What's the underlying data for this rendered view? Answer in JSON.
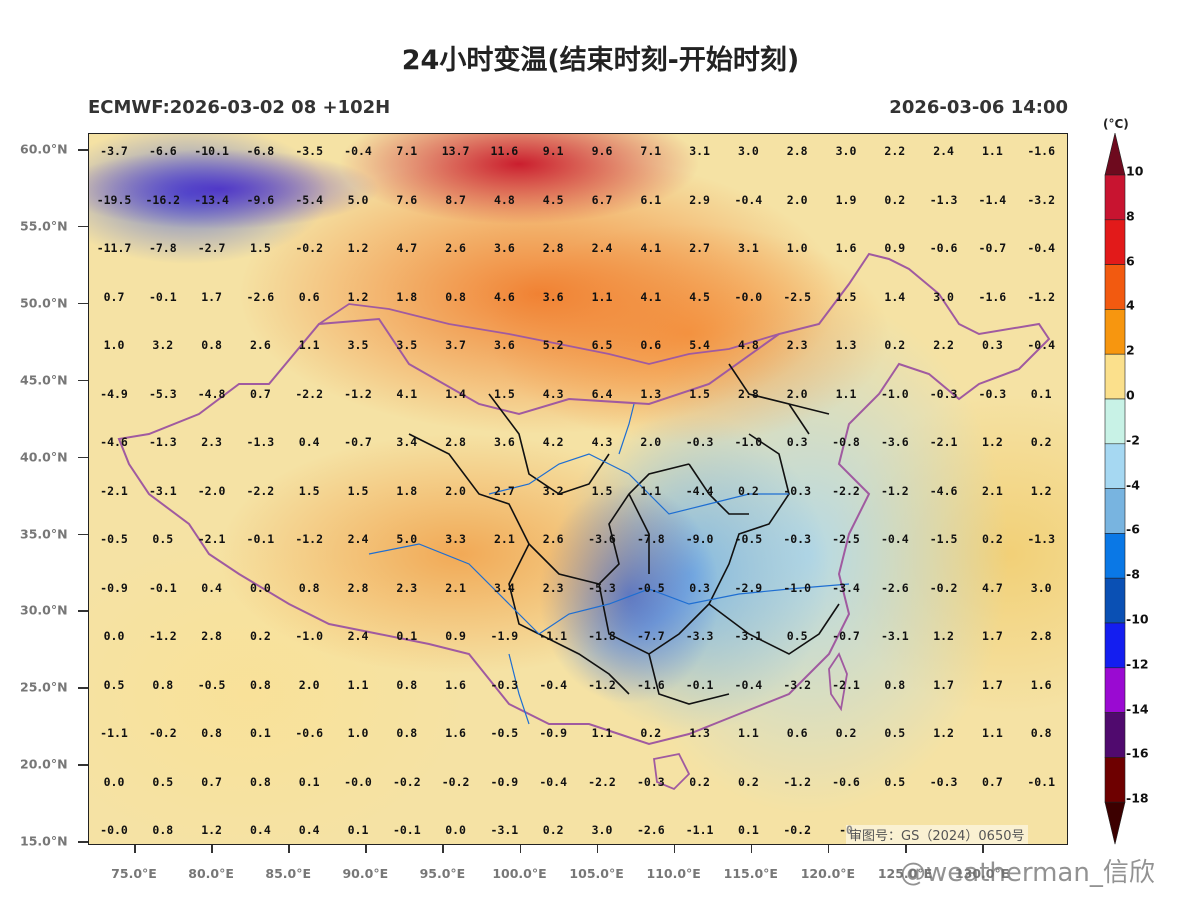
{
  "title": "24小时变温(结束时刻-开始时刻)",
  "subtitle_left": "ECMWF:2026-03-02 08 +102H",
  "subtitle_right": "2026-03-06 14:00",
  "colorbar": {
    "unit": "(°C)",
    "ticks": [
      "10",
      "8",
      "6",
      "4",
      "2",
      "0",
      "-2",
      "-4",
      "-6",
      "-8",
      "-10",
      "-12",
      "-14",
      "-16",
      "-18"
    ],
    "colors": [
      "#6e0a1e",
      "#c81430",
      "#e21a1a",
      "#f25a10",
      "#f7960f",
      "#fbe08c",
      "#c8f2e6",
      "#a6d8f2",
      "#78b4e0",
      "#0a78e6",
      "#0a50b4",
      "#141ef0",
      "#9a0ad2",
      "#500a6e",
      "#6e0000",
      "#3c0000"
    ]
  },
  "lat_labels": [
    "60.0°N",
    "55.0°N",
    "50.0°N",
    "45.0°N",
    "40.0°N",
    "35.0°N",
    "30.0°N",
    "25.0°N",
    "20.0°N",
    "15.0°N"
  ],
  "lon_labels": [
    "75.0°E",
    "80.0°E",
    "85.0°E",
    "90.0°E",
    "95.0°E",
    "100.0°E",
    "105.0°E",
    "110.0°E",
    "115.0°E",
    "120.0°E",
    "125.0°E",
    "130.0°E"
  ],
  "grid_values": [
    [
      "-3.7",
      "-6.6",
      "-10.1",
      "-6.8",
      "-3.5",
      "-0.4",
      "7.1",
      "13.7",
      "11.6",
      "9.1",
      "9.6",
      "7.1",
      "3.1",
      "3.0",
      "2.8",
      "3.0",
      "2.2",
      "2.4",
      "1.1",
      "-1.6"
    ],
    [
      "-19.5",
      "-16.2",
      "-13.4",
      "-9.6",
      "-5.4",
      "5.0",
      "7.6",
      "8.7",
      "4.8",
      "4.5",
      "6.7",
      "6.1",
      "2.9",
      "-0.4",
      "2.0",
      "1.9",
      "0.2",
      "-1.3",
      "-1.4",
      "-3.2"
    ],
    [
      "-11.7",
      "-7.8",
      "-2.7",
      "1.5",
      "-0.2",
      "1.2",
      "4.7",
      "2.6",
      "3.6",
      "2.8",
      "2.4",
      "4.1",
      "2.7",
      "3.1",
      "1.0",
      "1.6",
      "0.9",
      "-0.6",
      "-0.7",
      "-0.4"
    ],
    [
      "0.7",
      "-0.1",
      "1.7",
      "-2.6",
      "0.6",
      "1.2",
      "1.8",
      "0.8",
      "4.6",
      "3.6",
      "1.1",
      "4.1",
      "4.5",
      "-0.0",
      "-2.5",
      "1.5",
      "1.4",
      "3.0",
      "-1.6",
      "-1.2"
    ],
    [
      "1.0",
      "3.2",
      "0.8",
      "2.6",
      "1.1",
      "3.5",
      "3.5",
      "3.7",
      "3.6",
      "5.2",
      "6.5",
      "0.6",
      "5.4",
      "4.8",
      "2.3",
      "1.3",
      "0.2",
      "2.2",
      "0.3",
      "-0.4"
    ],
    [
      "-4.9",
      "-5.3",
      "-4.8",
      "0.7",
      "-2.2",
      "-1.2",
      "4.1",
      "1.4",
      "1.5",
      "4.3",
      "6.4",
      "1.3",
      "1.5",
      "2.8",
      "2.0",
      "1.1",
      "-1.0",
      "-0.3",
      "-0.3",
      "0.1"
    ],
    [
      "-4.6",
      "-1.3",
      "2.3",
      "-1.3",
      "0.4",
      "-0.7",
      "3.4",
      "2.8",
      "3.6",
      "4.2",
      "4.3",
      "2.0",
      "-0.3",
      "-1.0",
      "0.3",
      "-0.8",
      "-3.6",
      "-2.1",
      "1.2",
      "0.2"
    ],
    [
      "-2.1",
      "-3.1",
      "-2.0",
      "-2.2",
      "1.5",
      "1.5",
      "1.8",
      "2.0",
      "2.7",
      "3.2",
      "1.5",
      "1.1",
      "-4.4",
      "0.2",
      "-0.3",
      "-2.2",
      "-1.2",
      "-4.6",
      "2.1",
      "1.2"
    ],
    [
      "-0.5",
      "0.5",
      "-2.1",
      "-0.1",
      "-1.2",
      "2.4",
      "5.0",
      "3.3",
      "2.1",
      "2.6",
      "-3.6",
      "-7.8",
      "-9.0",
      "-0.5",
      "-0.3",
      "-2.5",
      "-0.4",
      "-1.5",
      "0.2",
      "-1.3"
    ],
    [
      "-0.9",
      "-0.1",
      "0.4",
      "0.0",
      "0.8",
      "2.8",
      "2.3",
      "2.1",
      "3.4",
      "2.3",
      "-5.3",
      "-0.5",
      "0.3",
      "-2.9",
      "-1.0",
      "-3.4",
      "-2.6",
      "-0.2",
      "4.7",
      "3.0"
    ],
    [
      "0.0",
      "-1.2",
      "2.8",
      "0.2",
      "-1.0",
      "2.4",
      "0.1",
      "0.9",
      "-1.9",
      "-1.1",
      "-1.8",
      "-7.7",
      "-3.3",
      "-3.1",
      "0.5",
      "-0.7",
      "-3.1",
      "1.2",
      "1.7",
      "2.8"
    ],
    [
      "0.5",
      "0.8",
      "-0.5",
      "0.8",
      "2.0",
      "1.1",
      "0.8",
      "1.6",
      "-0.3",
      "-0.4",
      "-1.2",
      "-1.6",
      "-0.1",
      "-0.4",
      "-3.2",
      "-2.1",
      "0.8",
      "1.7",
      "1.7",
      "1.6"
    ],
    [
      "-1.1",
      "-0.2",
      "0.8",
      "0.1",
      "-0.6",
      "1.0",
      "0.8",
      "1.6",
      "-0.5",
      "-0.9",
      "1.1",
      "0.2",
      "1.3",
      "1.1",
      "0.6",
      "0.2",
      "0.5",
      "1.2",
      "1.1",
      "0.8"
    ],
    [
      "0.0",
      "0.5",
      "0.7",
      "0.8",
      "0.1",
      "-0.0",
      "-0.2",
      "-0.2",
      "-0.9",
      "-0.4",
      "-2.2",
      "-0.3",
      "0.2",
      "0.2",
      "-1.2",
      "-0.6",
      "0.5",
      "-0.3",
      "0.7",
      "-0.1"
    ],
    [
      "-0.0",
      "0.8",
      "1.2",
      "0.4",
      "0.4",
      "0.1",
      "-0.1",
      "0.0",
      "-3.1",
      "0.2",
      "3.0",
      "-2.6",
      "-1.1",
      "0.1",
      "-0.2",
      "-0"
    ]
  ],
  "approval": "审图号：GS（2024）0650号",
  "watermark": "@weatherman_信欣"
}
